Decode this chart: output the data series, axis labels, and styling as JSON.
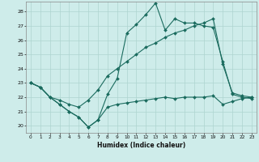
{
  "xlabel": "Humidex (Indice chaleur)",
  "background_color": "#ceecea",
  "grid_color": "#aed4d0",
  "line_color": "#1a6b5e",
  "xlim": [
    -0.5,
    23.5
  ],
  "ylim": [
    19.5,
    28.7
  ],
  "yticks": [
    20,
    21,
    22,
    23,
    24,
    25,
    26,
    27,
    28
  ],
  "xticks": [
    0,
    1,
    2,
    3,
    4,
    5,
    6,
    7,
    8,
    9,
    10,
    11,
    12,
    13,
    14,
    15,
    16,
    17,
    18,
    19,
    20,
    21,
    22,
    23
  ],
  "series1_x": [
    0,
    1,
    2,
    3,
    4,
    5,
    6,
    7,
    8,
    9,
    10,
    11,
    12,
    13,
    14,
    15,
    16,
    17,
    18,
    19,
    20,
    21,
    22,
    23
  ],
  "series1_y": [
    23.0,
    22.7,
    22.0,
    21.5,
    21.0,
    20.6,
    19.9,
    20.4,
    22.2,
    23.3,
    26.5,
    27.1,
    27.8,
    28.6,
    26.7,
    27.5,
    27.2,
    27.2,
    27.0,
    26.9,
    24.5,
    22.2,
    22.0,
    21.9
  ],
  "series2_x": [
    0,
    1,
    2,
    3,
    4,
    5,
    6,
    7,
    8,
    9,
    10,
    11,
    12,
    13,
    14,
    15,
    16,
    17,
    18,
    19,
    20,
    21,
    22,
    23
  ],
  "series2_y": [
    23.0,
    22.7,
    22.0,
    21.8,
    21.5,
    21.3,
    21.8,
    22.5,
    23.5,
    24.0,
    24.5,
    25.0,
    25.5,
    25.8,
    26.2,
    26.5,
    26.7,
    27.0,
    27.2,
    27.5,
    24.3,
    22.3,
    22.1,
    22.0
  ],
  "series3_x": [
    0,
    1,
    2,
    3,
    4,
    5,
    6,
    7,
    8,
    9,
    10,
    11,
    12,
    13,
    14,
    15,
    16,
    17,
    18,
    19,
    20,
    21,
    22,
    23
  ],
  "series3_y": [
    23.0,
    22.7,
    22.0,
    21.5,
    21.0,
    20.6,
    19.9,
    20.4,
    21.3,
    21.5,
    21.6,
    21.7,
    21.8,
    21.9,
    22.0,
    21.9,
    22.0,
    22.0,
    22.0,
    22.1,
    21.5,
    21.7,
    21.9,
    22.0
  ]
}
